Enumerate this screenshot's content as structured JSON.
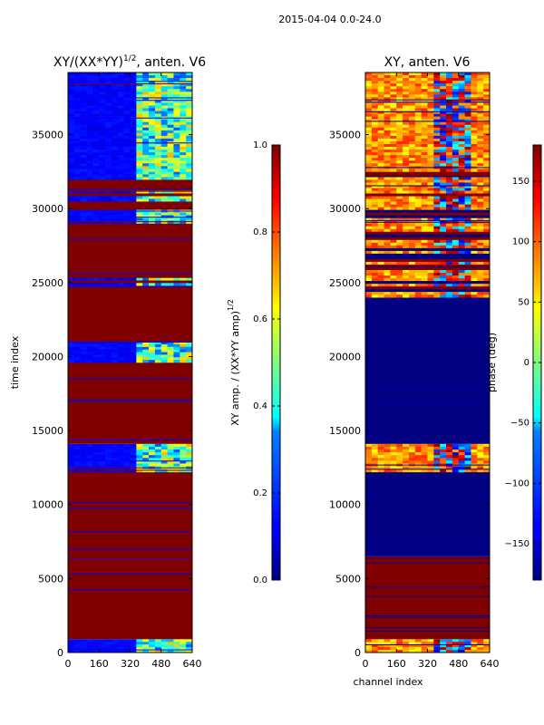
{
  "figure": {
    "suptitle": "2015-04-04 0.0-24.0"
  },
  "chart_data": [
    {
      "type": "heatmap",
      "title": "XY/(XX*YY)^{1/2}, anten. V6",
      "title_main": "XY/(XX*YY)",
      "title_exp": "1/2",
      "title_tail": ", anten. V6",
      "xlabel": "",
      "ylabel": "time index",
      "xlim": [
        0,
        640
      ],
      "ylim": [
        0,
        39200
      ],
      "xticks": [
        0,
        160,
        320,
        480,
        640
      ],
      "yticks": [
        0,
        5000,
        10000,
        15000,
        20000,
        25000,
        30000,
        35000
      ],
      "colorbar": {
        "label": "XY amp. / (XX*YY amp)^{1/2}",
        "label_main": "XY amp. / (XX*YY amp)",
        "label_exp": "1/2",
        "ticks": [
          0.0,
          0.2,
          0.4,
          0.6,
          0.8,
          1.0
        ],
        "range": [
          0.0,
          1.0
        ]
      },
      "bands": [
        {
          "from": 0,
          "to": 900,
          "value": "data"
        },
        {
          "from": 900,
          "to": 12200,
          "value": 1.0
        },
        {
          "from": 12200,
          "to": 14100,
          "value": "data"
        },
        {
          "from": 14100,
          "to": 19600,
          "value": 1.0
        },
        {
          "from": 19600,
          "to": 21000,
          "value": "data"
        },
        {
          "from": 21000,
          "to": 24800,
          "value": 1.0
        },
        {
          "from": 24800,
          "to": 26000,
          "value": "mixed"
        },
        {
          "from": 26000,
          "to": 29000,
          "value": 1.0
        },
        {
          "from": 29000,
          "to": 32500,
          "value": "mixed"
        },
        {
          "from": 32500,
          "to": 39200,
          "value": "data"
        }
      ]
    },
    {
      "type": "heatmap",
      "title": "XY, anten. V6",
      "xlabel": "channel index",
      "ylabel": "",
      "xlim": [
        0,
        640
      ],
      "ylim": [
        0,
        39200
      ],
      "xticks": [
        0,
        160,
        320,
        480,
        640
      ],
      "yticks": [
        0,
        5000,
        10000,
        15000,
        20000,
        25000,
        30000,
        35000
      ],
      "colorbar": {
        "label": "phase (deg)",
        "ticks": [
          -150,
          -100,
          -50,
          0,
          50,
          100,
          150
        ],
        "range": [
          -180,
          180
        ]
      },
      "bands": [
        {
          "from": 0,
          "to": 900,
          "value": "data"
        },
        {
          "from": 900,
          "to": 6500,
          "value": 180
        },
        {
          "from": 6500,
          "to": 12200,
          "value": -180
        },
        {
          "from": 12200,
          "to": 14100,
          "value": "data"
        },
        {
          "from": 14100,
          "to": 24000,
          "value": -180
        },
        {
          "from": 24000,
          "to": 32500,
          "value": "mixed"
        },
        {
          "from": 32500,
          "to": 39200,
          "value": "data"
        }
      ]
    }
  ]
}
